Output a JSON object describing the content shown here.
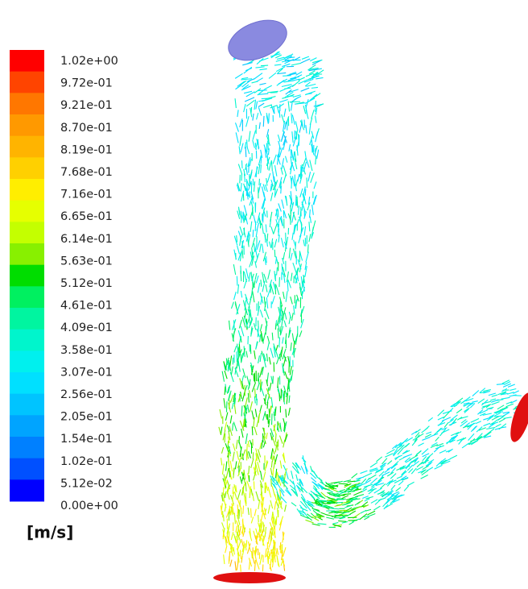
{
  "legend": {
    "labels": [
      "1.02e+00",
      "9.72e-01",
      "9.21e-01",
      "8.70e-01",
      "8.19e-01",
      "7.68e-01",
      "7.16e-01",
      "6.65e-01",
      "6.14e-01",
      "5.63e-01",
      "5.12e-01",
      "4.61e-01",
      "4.09e-01",
      "3.58e-01",
      "3.07e-01",
      "2.56e-01",
      "2.05e-01",
      "1.54e-01",
      "1.02e-01",
      "5.12e-02",
      "0.00e+00"
    ],
    "colors": [
      "#ff0000",
      "#ff4400",
      "#ff7700",
      "#ff9900",
      "#ffb400",
      "#ffd000",
      "#ffee00",
      "#e6ff00",
      "#c4ff00",
      "#88f000",
      "#00dd00",
      "#00f060",
      "#00f5a0",
      "#00f5cc",
      "#00f0ee",
      "#00e0ff",
      "#00c4ff",
      "#00a4ff",
      "#0080ff",
      "#0050ff",
      "#0000ff"
    ],
    "unit": "[m/s]"
  }
}
